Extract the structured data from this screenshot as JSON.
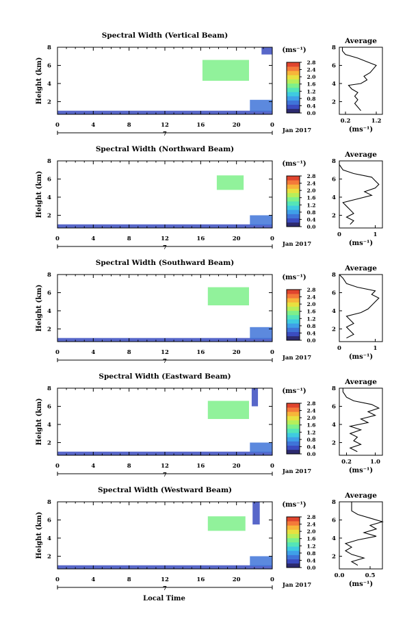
{
  "figure": {
    "x_axis_title": "Local Time",
    "height_label": "Height (km)",
    "units_label": "(ms⁻¹)",
    "average_title": "Average",
    "date_label": "Jan 2017",
    "day_label": "7"
  },
  "colors": {
    "colormap": [
      "#2d2a6e",
      "#3b4cc0",
      "#3f74d8",
      "#3fa0e8",
      "#3fcbe0",
      "#54e5b8",
      "#7ef08a",
      "#b7ee5a",
      "#e8e040",
      "#f7b53a",
      "#f47a3a",
      "#e0452e"
    ],
    "profile_line": "#000000"
  },
  "chart_data": [
    {
      "type": "heatmap",
      "title": "Spectral Width (Vertical Beam)",
      "xlabel": "",
      "ylabel": "Height (km)",
      "x_ticks": [
        "0",
        "4",
        "8",
        "12",
        "16",
        "20",
        "0"
      ],
      "xlim": [
        0,
        24
      ],
      "y_ticks": [
        "2",
        "4",
        "6",
        "8"
      ],
      "ylim": [
        0.6,
        8
      ],
      "colorbar": {
        "label": "(ms⁻¹)",
        "ticks": [
          "0.0",
          "0.4",
          "0.8",
          "1.2",
          "1.6",
          "2.0",
          "2.4",
          "2.8"
        ],
        "range": [
          0,
          2.8
        ]
      },
      "patches": [
        {
          "x_range": [
            16.2,
            21.4
          ],
          "y_range": [
            4.3,
            6.6
          ],
          "value": 1.4
        },
        {
          "x_range": [
            0.0,
            24.0
          ],
          "y_range": [
            0.6,
            1.0
          ],
          "value": 0.4
        },
        {
          "x_range": [
            21.5,
            24.0
          ],
          "y_range": [
            0.9,
            2.2
          ],
          "value": 0.5
        },
        {
          "x_range": [
            22.8,
            24.0
          ],
          "y_range": [
            7.2,
            8.0
          ],
          "value": 0.4
        }
      ],
      "average": {
        "title": "Average",
        "xlabel": "(ms⁻¹)",
        "x_ticks": [
          "0.2",
          "1.2"
        ],
        "xlim": [
          0.0,
          1.4
        ],
        "y_ticks": [
          "2",
          "4",
          "6",
          "8"
        ],
        "ylim": [
          0.6,
          8
        ],
        "profile": [
          [
            0.7,
            1.0
          ],
          [
            0.6,
            1.4
          ],
          [
            0.5,
            1.8
          ],
          [
            0.6,
            2.2
          ],
          [
            0.5,
            2.6
          ],
          [
            0.6,
            3.0
          ],
          [
            0.4,
            3.4
          ],
          [
            0.3,
            3.8
          ],
          [
            0.7,
            4.0
          ],
          [
            0.9,
            4.4
          ],
          [
            0.8,
            4.8
          ],
          [
            1.0,
            5.2
          ],
          [
            1.1,
            5.6
          ],
          [
            1.2,
            6.0
          ],
          [
            0.9,
            6.4
          ],
          [
            0.6,
            6.8
          ],
          [
            0.2,
            7.2
          ],
          [
            0.1,
            7.6
          ],
          [
            0.1,
            8.0
          ]
        ]
      }
    },
    {
      "type": "heatmap",
      "title": "Spectral Width (Northward Beam)",
      "xlabel": "",
      "ylabel": "Height (km)",
      "x_ticks": [
        "0",
        "4",
        "8",
        "12",
        "16",
        "20",
        "0"
      ],
      "xlim": [
        0,
        24
      ],
      "y_ticks": [
        "2",
        "4",
        "6",
        "8"
      ],
      "ylim": [
        0.6,
        8
      ],
      "colorbar": {
        "label": "(ms⁻¹)",
        "ticks": [
          "0.0",
          "0.4",
          "0.8",
          "1.2",
          "1.6",
          "2.0",
          "2.4",
          "2.8"
        ],
        "range": [
          0,
          2.8
        ]
      },
      "patches": [
        {
          "x_range": [
            17.8,
            20.8
          ],
          "y_range": [
            4.8,
            6.4
          ],
          "value": 1.6
        },
        {
          "x_range": [
            0.0,
            24.0
          ],
          "y_range": [
            0.6,
            1.0
          ],
          "value": 0.4
        },
        {
          "x_range": [
            21.5,
            24.0
          ],
          "y_range": [
            0.9,
            2.0
          ],
          "value": 0.5
        }
      ],
      "average": {
        "title": "Average",
        "xlabel": "(ms⁻¹)",
        "x_ticks": [
          "0",
          "1"
        ],
        "xlim": [
          0.0,
          1.2
        ],
        "y_ticks": [
          "2",
          "4",
          "6",
          "8"
        ],
        "ylim": [
          0.6,
          8
        ],
        "profile": [
          [
            0.3,
            1.0
          ],
          [
            0.4,
            1.4
          ],
          [
            0.2,
            1.8
          ],
          [
            0.4,
            2.2
          ],
          [
            0.3,
            2.6
          ],
          [
            0.2,
            3.0
          ],
          [
            0.1,
            3.4
          ],
          [
            0.5,
            3.8
          ],
          [
            0.9,
            4.2
          ],
          [
            0.7,
            4.6
          ],
          [
            1.0,
            5.0
          ],
          [
            1.1,
            5.4
          ],
          [
            1.0,
            5.8
          ],
          [
            0.9,
            6.2
          ],
          [
            0.4,
            6.6
          ],
          [
            0.1,
            7.0
          ],
          [
            0.0,
            7.6
          ],
          [
            0.0,
            8.0
          ]
        ]
      }
    },
    {
      "type": "heatmap",
      "title": "Spectral Width (Southward Beam)",
      "xlabel": "",
      "ylabel": "Height (km)",
      "x_ticks": [
        "0",
        "4",
        "8",
        "12",
        "16",
        "20",
        "0"
      ],
      "xlim": [
        0,
        24
      ],
      "y_ticks": [
        "2",
        "4",
        "6",
        "8"
      ],
      "ylim": [
        0.6,
        8
      ],
      "colorbar": {
        "label": "(ms⁻¹)",
        "ticks": [
          "0.0",
          "0.4",
          "0.8",
          "1.2",
          "1.6",
          "2.0",
          "2.4",
          "2.8"
        ],
        "range": [
          0,
          2.8
        ]
      },
      "patches": [
        {
          "x_range": [
            16.8,
            21.4
          ],
          "y_range": [
            4.6,
            6.6
          ],
          "value": 1.5
        },
        {
          "x_range": [
            0.0,
            24.0
          ],
          "y_range": [
            0.6,
            1.0
          ],
          "value": 0.4
        },
        {
          "x_range": [
            21.5,
            24.0
          ],
          "y_range": [
            0.9,
            2.2
          ],
          "value": 0.5
        }
      ],
      "average": {
        "title": "Average",
        "xlabel": "(ms⁻¹)",
        "x_ticks": [
          "0",
          "1"
        ],
        "xlim": [
          0.0,
          1.2
        ],
        "y_ticks": [
          "2",
          "4",
          "6",
          "8"
        ],
        "ylim": [
          0.6,
          8
        ],
        "profile": [
          [
            0.2,
            1.0
          ],
          [
            0.4,
            1.4
          ],
          [
            0.3,
            1.8
          ],
          [
            0.2,
            2.2
          ],
          [
            0.4,
            2.6
          ],
          [
            0.3,
            3.0
          ],
          [
            0.2,
            3.4
          ],
          [
            0.6,
            3.8
          ],
          [
            0.8,
            4.2
          ],
          [
            0.9,
            4.6
          ],
          [
            1.0,
            5.0
          ],
          [
            1.1,
            5.4
          ],
          [
            0.9,
            5.8
          ],
          [
            1.0,
            6.2
          ],
          [
            0.5,
            6.6
          ],
          [
            0.2,
            7.0
          ],
          [
            0.1,
            7.6
          ],
          [
            0.0,
            8.0
          ]
        ]
      }
    },
    {
      "type": "heatmap",
      "title": "Spectral Width (Eastward Beam)",
      "xlabel": "",
      "ylabel": "Height (km)",
      "x_ticks": [
        "0",
        "4",
        "8",
        "12",
        "16",
        "20",
        "0"
      ],
      "xlim": [
        0,
        24
      ],
      "y_ticks": [
        "2",
        "4",
        "6",
        "8"
      ],
      "ylim": [
        0.6,
        8
      ],
      "colorbar": {
        "label": "(ms⁻¹)",
        "ticks": [
          "0.0",
          "0.4",
          "0.8",
          "1.2",
          "1.6",
          "2.0",
          "2.4",
          "2.8"
        ],
        "range": [
          0,
          2.8
        ]
      },
      "patches": [
        {
          "x_range": [
            16.8,
            21.4
          ],
          "y_range": [
            4.6,
            6.6
          ],
          "value": 1.5
        },
        {
          "x_range": [
            0.0,
            24.0
          ],
          "y_range": [
            0.6,
            1.0
          ],
          "value": 0.4
        },
        {
          "x_range": [
            21.5,
            24.0
          ],
          "y_range": [
            0.9,
            2.0
          ],
          "value": 0.5
        },
        {
          "x_range": [
            21.7,
            22.4
          ],
          "y_range": [
            6.0,
            8.0
          ],
          "value": 0.3
        }
      ],
      "average": {
        "title": "Average",
        "xlabel": "(ms⁻¹)",
        "x_ticks": [
          "0.2",
          "1.0"
        ],
        "xlim": [
          0.0,
          1.2
        ],
        "y_ticks": [
          "2",
          "4",
          "6",
          "8"
        ],
        "ylim": [
          0.6,
          8
        ],
        "profile": [
          [
            0.5,
            1.0
          ],
          [
            0.3,
            1.4
          ],
          [
            0.6,
            1.8
          ],
          [
            0.4,
            2.2
          ],
          [
            0.5,
            2.6
          ],
          [
            0.3,
            3.0
          ],
          [
            0.6,
            3.4
          ],
          [
            0.3,
            3.8
          ],
          [
            0.8,
            4.2
          ],
          [
            0.6,
            4.6
          ],
          [
            1.0,
            5.0
          ],
          [
            0.8,
            5.4
          ],
          [
            1.1,
            5.8
          ],
          [
            0.9,
            6.2
          ],
          [
            0.4,
            6.6
          ],
          [
            0.2,
            7.0
          ],
          [
            0.1,
            7.6
          ],
          [
            0.1,
            8.0
          ]
        ]
      }
    },
    {
      "type": "heatmap",
      "title": "Spectral Width (Westward Beam)",
      "xlabel": "Local Time",
      "ylabel": "Height (km)",
      "x_ticks": [
        "0",
        "4",
        "8",
        "12",
        "16",
        "20",
        "0"
      ],
      "xlim": [
        0,
        24
      ],
      "y_ticks": [
        "2",
        "4",
        "6",
        "8"
      ],
      "ylim": [
        0.6,
        8
      ],
      "colorbar": {
        "label": "(ms⁻¹)",
        "ticks": [
          "0.0",
          "0.4",
          "0.8",
          "1.2",
          "1.6",
          "2.0",
          "2.4",
          "2.8"
        ],
        "range": [
          0,
          2.8
        ]
      },
      "patches": [
        {
          "x_range": [
            16.8,
            21.0
          ],
          "y_range": [
            4.8,
            6.4
          ],
          "value": 1.6
        },
        {
          "x_range": [
            0.0,
            24.0
          ],
          "y_range": [
            0.6,
            1.0
          ],
          "value": 0.4
        },
        {
          "x_range": [
            21.5,
            24.0
          ],
          "y_range": [
            0.9,
            2.0
          ],
          "value": 0.5
        },
        {
          "x_range": [
            21.8,
            22.6
          ],
          "y_range": [
            5.5,
            8.0
          ],
          "value": 0.3
        }
      ],
      "average": {
        "title": "Average",
        "xlabel": "(ms⁻¹)",
        "x_ticks": [
          "0.0",
          "0.5"
        ],
        "xlim": [
          0.0,
          0.7
        ],
        "y_ticks": [
          "2",
          "4",
          "6",
          "8"
        ],
        "ylim": [
          0.6,
          8
        ],
        "profile": [
          [
            0.3,
            1.0
          ],
          [
            0.2,
            1.4
          ],
          [
            0.4,
            1.8
          ],
          [
            0.2,
            2.2
          ],
          [
            0.1,
            2.6
          ],
          [
            0.2,
            3.0
          ],
          [
            0.1,
            3.4
          ],
          [
            0.3,
            3.8
          ],
          [
            0.6,
            4.2
          ],
          [
            0.4,
            4.6
          ],
          [
            0.6,
            5.0
          ],
          [
            0.5,
            5.4
          ],
          [
            0.7,
            5.8
          ],
          [
            0.5,
            6.2
          ],
          [
            0.3,
            6.6
          ],
          [
            0.2,
            7.0
          ],
          [
            0.2,
            7.6
          ],
          [
            0.2,
            8.0
          ]
        ]
      }
    }
  ]
}
